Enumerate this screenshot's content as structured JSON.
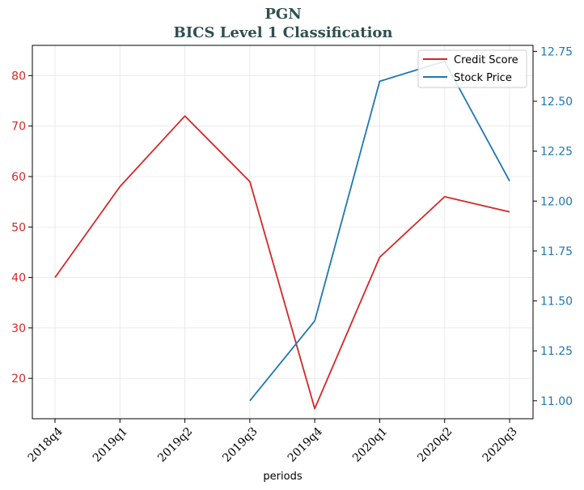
{
  "chart_data": {
    "type": "line",
    "title": "PGN",
    "subtitle": "BICS Level 1 Classification",
    "xlabel": "periods",
    "categories": [
      "2018q4",
      "2019q1",
      "2019q2",
      "2019q3",
      "2019q4",
      "2020q1",
      "2020q2",
      "2020q3"
    ],
    "ylim_left": [
      12,
      86
    ],
    "ylim_right": [
      10.91,
      12.78
    ],
    "yticks_left": [
      20,
      30,
      40,
      50,
      60,
      70,
      80
    ],
    "yticks_right": [
      "11.00",
      "11.25",
      "11.50",
      "11.75",
      "12.00",
      "12.25",
      "12.50",
      "12.75"
    ],
    "grid": true,
    "legend_position": "top-right",
    "series": [
      {
        "name": "Credit Score",
        "axis": "left",
        "color": "#d62728",
        "values": [
          40,
          58,
          72,
          59,
          14,
          44,
          56,
          53
        ]
      },
      {
        "name": "Stock Price",
        "axis": "right",
        "color": "#1f77b4",
        "values": [
          null,
          null,
          null,
          11.0,
          11.4,
          12.6,
          12.7,
          12.1
        ]
      }
    ],
    "axis_colors": {
      "left": "#d62728",
      "right": "#1f77b4"
    }
  }
}
